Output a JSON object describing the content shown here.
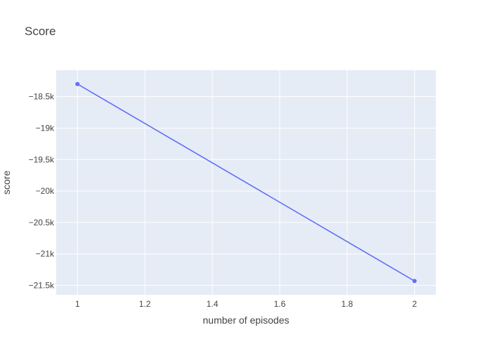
{
  "chart_data": {
    "type": "line",
    "title": "Score",
    "xlabel": "number of episodes",
    "ylabel": "score",
    "x": [
      1,
      2
    ],
    "series": [
      {
        "values": [
          -18300,
          -21430
        ],
        "mode": "lines+markers",
        "color": "#636efa"
      }
    ],
    "xlim": [
      0.937,
      2.063
    ],
    "ylim": [
      -21650,
      -18080
    ],
    "xticks": [
      1,
      1.2,
      1.4,
      1.6,
      1.8,
      2
    ],
    "xtick_labels": [
      "1",
      "1.2",
      "1.4",
      "1.6",
      "1.8",
      "2"
    ],
    "yticks": [
      -18500,
      -19000,
      -19500,
      -20000,
      -20500,
      -21000,
      -21500
    ],
    "ytick_labels": [
      "−18.5k",
      "−19k",
      "−19.5k",
      "−20k",
      "−20.5k",
      "−21k",
      "−21.5k"
    ],
    "grid": true,
    "legend": "none",
    "plot_background": "#e5ecf6",
    "grid_color": "#ffffff"
  }
}
